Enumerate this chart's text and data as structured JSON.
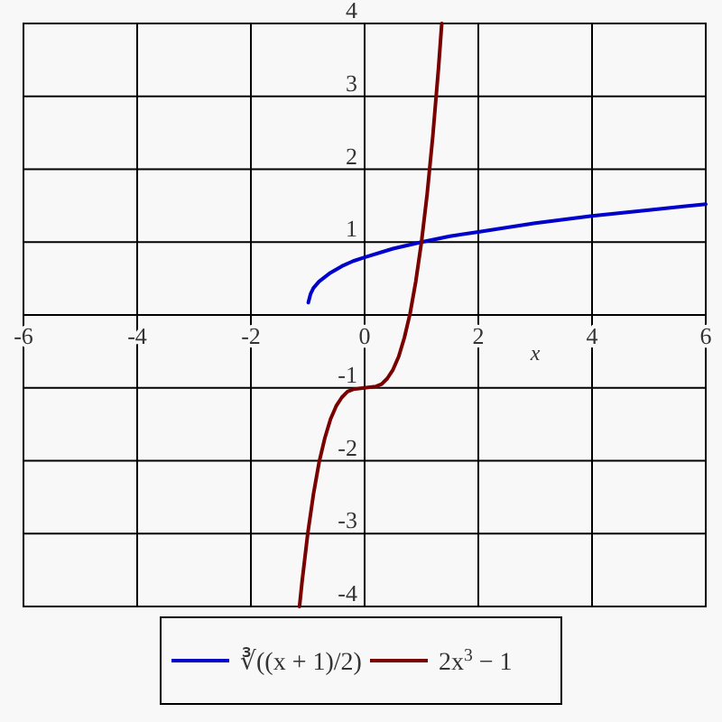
{
  "chart_data": {
    "type": "line",
    "xlabel": "x",
    "xlim": [
      -6,
      6
    ],
    "ylim": [
      -4,
      4
    ],
    "xticks": [
      -6,
      -4,
      -2,
      0,
      2,
      4,
      6
    ],
    "yticks": [
      -4,
      -3,
      -2,
      -1,
      {
        "value": 0,
        "label": null
      },
      1,
      2,
      3,
      4
    ],
    "grid": true,
    "legend": "bottom",
    "line_style": "solid",
    "marker": "none",
    "series": [
      {
        "name": "∛((x + 1)/2)",
        "color": "#0000cc",
        "x": [
          -0.99,
          -0.95,
          -0.9,
          -0.8,
          -0.6,
          -0.4,
          -0.2,
          0,
          0.5,
          1,
          1.5,
          2,
          3,
          4,
          5,
          6
        ],
        "values": [
          0.17,
          0.29,
          0.37,
          0.46,
          0.58,
          0.67,
          0.74,
          0.79,
          0.91,
          1,
          1.08,
          1.14,
          1.26,
          1.36,
          1.44,
          1.52
        ]
      },
      {
        "name": "2x$^{3}$ − 1",
        "color": "#7a0000",
        "x": [
          -1.145,
          -1.1,
          -1,
          -0.9,
          -0.8,
          -0.7,
          -0.6,
          -0.5,
          -0.4,
          -0.3,
          -0.2,
          0,
          0.2,
          0.3,
          0.4,
          0.5,
          0.6,
          0.7,
          0.8,
          0.9,
          1,
          1.1,
          1.2,
          1.3,
          1.357
        ],
        "values": [
          -4,
          -3.66,
          -3,
          -2.46,
          -2.02,
          -1.69,
          -1.43,
          -1.25,
          -1.13,
          -1.05,
          -1.02,
          -1,
          -0.98,
          -0.95,
          -0.87,
          -0.75,
          -0.57,
          -0.31,
          0.02,
          0.46,
          1,
          1.66,
          2.46,
          3.39,
          4
        ]
      }
    ]
  }
}
